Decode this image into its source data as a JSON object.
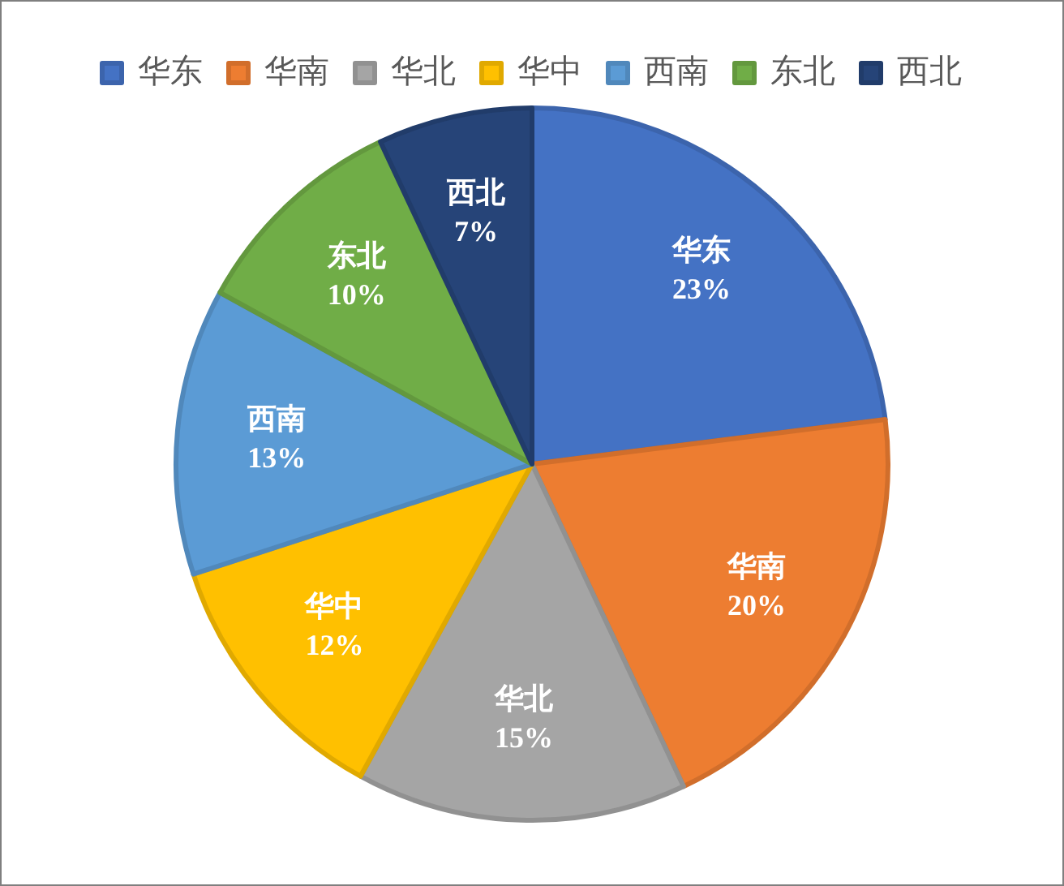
{
  "chart_data": {
    "type": "pie",
    "categories": [
      "华东",
      "华南",
      "华北",
      "华中",
      "西南",
      "东北",
      "西北"
    ],
    "values": [
      23,
      20,
      15,
      12,
      13,
      10,
      7
    ],
    "value_labels": [
      "23%",
      "20%",
      "15%",
      "12%",
      "13%",
      "10%",
      "7%"
    ],
    "colors": [
      "#4472c4",
      "#ed7d31",
      "#a5a5a5",
      "#ffc000",
      "#5b9bd5",
      "#70ad47",
      "#264478"
    ],
    "legend": "top"
  }
}
